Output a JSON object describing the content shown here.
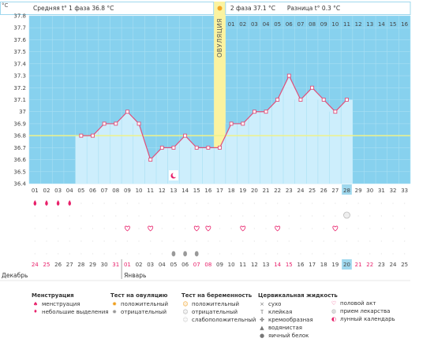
{
  "header": {
    "unit": "°C",
    "phase1": "Средняя t° 1 фаза 36.8 °C",
    "phase2": "2 фаза 37.1 °C",
    "diff": "Разница t° 0.3 °C",
    "ovulation": "ОВУЛЯЦИЯ"
  },
  "chart_data": {
    "type": "line",
    "ylim": [
      36.4,
      37.8
    ],
    "y_ticks": [
      "37.8",
      "37.7",
      "37.6",
      "37.5",
      "37.4",
      "37.3",
      "37.2",
      "37.1",
      "37",
      "36.9",
      "36.8",
      "36.7",
      "36.6",
      "36.5",
      "36.4"
    ],
    "cover_line": 36.8,
    "cycle_days": [
      "01",
      "02",
      "03",
      "04",
      "05",
      "06",
      "07",
      "08",
      "09",
      "10",
      "11",
      "12",
      "13",
      "14",
      "15",
      "16",
      "17",
      "18",
      "19",
      "20",
      "21",
      "22",
      "23",
      "24",
      "25",
      "26",
      "27",
      "28",
      "29",
      "30",
      "31",
      "32",
      "33"
    ],
    "ovulation_day": 17,
    "today_day": 28,
    "phase2_days": [
      "01",
      "02",
      "03",
      "04",
      "05",
      "06",
      "07",
      "08",
      "09",
      "10",
      "11",
      "12",
      "13",
      "14",
      "15",
      "16"
    ],
    "series": [
      {
        "values": [
          null,
          null,
          null,
          null,
          36.8,
          36.8,
          36.9,
          36.9,
          37.0,
          36.9,
          36.6,
          36.7,
          36.7,
          36.8,
          36.7,
          36.7,
          36.7,
          36.9,
          36.9,
          37.0,
          37.0,
          37.1,
          37.3,
          37.1,
          37.2,
          37.1,
          37.0,
          37.1,
          null,
          null,
          null,
          null,
          null
        ]
      }
    ],
    "calendar_dates": [
      "24",
      "25",
      "26",
      "27",
      "28",
      "29",
      "30",
      "31",
      "01",
      "02",
      "03",
      "04",
      "05",
      "06",
      "07",
      "08",
      "09",
      "10",
      "11",
      "12",
      "13",
      "14",
      "15",
      "16",
      "17",
      "18",
      "19",
      "20",
      "21",
      "22",
      "23",
      "24",
      "25"
    ],
    "weekend_days": [
      1,
      2,
      8,
      9,
      15,
      16,
      22,
      23,
      29,
      30
    ],
    "months": [
      "Декабрь",
      "Январь"
    ],
    "month_start_day": 9,
    "menstruation_days": [
      1,
      2,
      3,
      4
    ],
    "moon_days": [
      13
    ],
    "sex_days": [
      9,
      11,
      15,
      16,
      19,
      22,
      27
    ],
    "medicine_days": [
      28
    ],
    "egg_white_days": [
      13,
      14,
      15
    ]
  },
  "legend": {
    "menstruation": {
      "title": "Менструация",
      "items": [
        "менструация",
        "небольшие выделения"
      ]
    },
    "ovulation_test": {
      "title": "Тест на овуляцию",
      "items": [
        "положительный",
        "отрицательный"
      ]
    },
    "pregnancy_test": {
      "title": "Тест на беременность",
      "items": [
        "положительный",
        "отрицательный",
        "слабоположительный"
      ]
    },
    "cervical": {
      "title": "Цервикальная жидкость",
      "items": [
        "сухо",
        "клейкая",
        "кремообразная",
        "водянистая",
        "яичный белок"
      ]
    },
    "other": {
      "items": [
        "половой акт",
        "прием лекарства",
        "лунный календарь"
      ]
    },
    "colors": {
      "plot_bg": "#87d1ee",
      "fill": "#cdeefc",
      "line": "#e0507a",
      "cover": "#eef28a",
      "ovulation": "#fbf3a0",
      "weekend": "#e8206a"
    }
  }
}
